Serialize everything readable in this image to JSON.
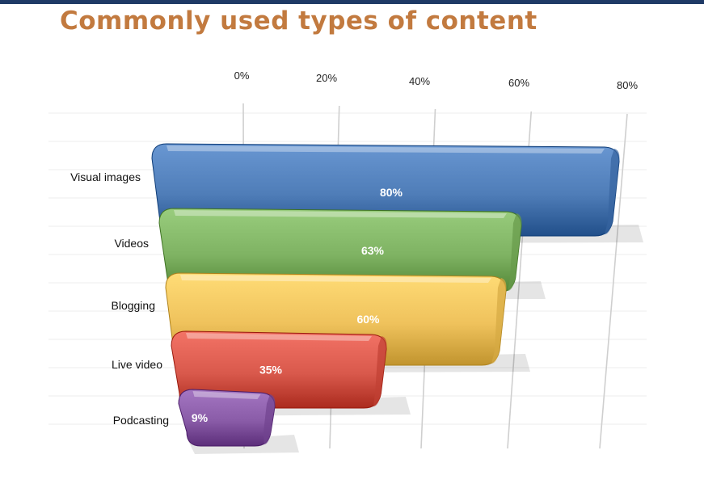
{
  "chart_data": {
    "type": "bar",
    "orientation": "horizontal",
    "title": "Commonly used types of content",
    "categories": [
      "Visual images",
      "Videos",
      "Blogging",
      "Live video",
      "Podcasting"
    ],
    "values": [
      80,
      63,
      60,
      35,
      9
    ],
    "value_labels": [
      "80%",
      "63%",
      "60%",
      "35%",
      "9%"
    ],
    "x_ticks": [
      "0%",
      "20%",
      "40%",
      "60%",
      "80%"
    ],
    "xlim": [
      0,
      80
    ],
    "grid": true,
    "legend": "none",
    "bar_colors": [
      "#4f7db8",
      "#7fb363",
      "#efc25c",
      "#d9594c",
      "#8a5ca8"
    ]
  }
}
